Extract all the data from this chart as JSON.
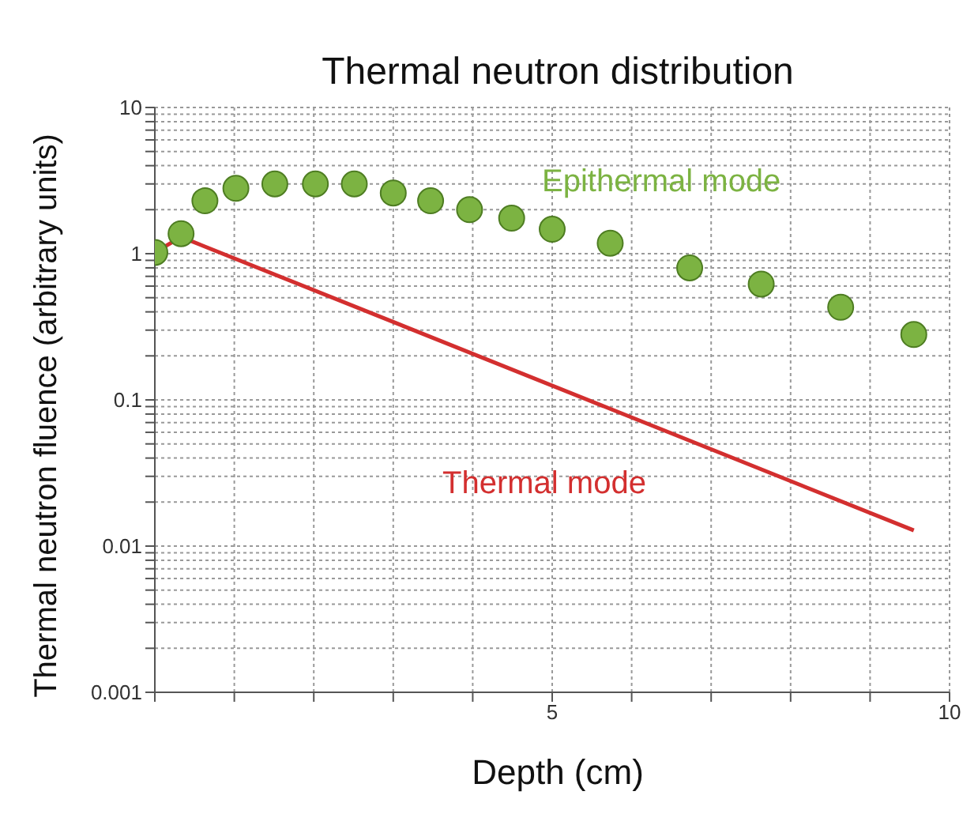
{
  "chart_data": {
    "type": "scatter",
    "title": "Thermal neutron distribution",
    "xlabel": "Depth (cm)",
    "ylabel": "Thermal neutron fluence (arbitrary units)",
    "log": "y",
    "grid": true,
    "xlim": [
      0,
      10
    ],
    "ylim": [
      0.001,
      10
    ],
    "xticks": [
      {
        "value": 0,
        "label": null
      },
      {
        "value": 1,
        "label": null
      },
      {
        "value": 2,
        "label": null
      },
      {
        "value": 3,
        "label": null
      },
      {
        "value": 4,
        "label": null
      },
      5,
      {
        "value": 6,
        "label": null
      },
      {
        "value": 7,
        "label": null
      },
      {
        "value": 8,
        "label": null
      },
      {
        "value": 9,
        "label": null
      },
      10
    ],
    "yticks": [
      0.001,
      {
        "value": 0.002,
        "label": null
      },
      {
        "value": 0.003,
        "label": null
      },
      {
        "value": 0.004,
        "label": null
      },
      {
        "value": 0.005,
        "label": null
      },
      {
        "value": 0.006,
        "label": null
      },
      {
        "value": 0.007,
        "label": null
      },
      {
        "value": 0.008,
        "label": null
      },
      {
        "value": 0.009,
        "label": null
      },
      0.01,
      {
        "value": 0.02,
        "label": null
      },
      {
        "value": 0.03,
        "label": null
      },
      {
        "value": 0.04,
        "label": null
      },
      {
        "value": 0.05,
        "label": null
      },
      {
        "value": 0.06,
        "label": null
      },
      {
        "value": 0.07,
        "label": null
      },
      {
        "value": 0.08,
        "label": null
      },
      {
        "value": 0.09,
        "label": null
      },
      0.1,
      {
        "value": 0.2,
        "label": null
      },
      {
        "value": 0.3,
        "label": null
      },
      {
        "value": 0.4,
        "label": null
      },
      {
        "value": 0.5,
        "label": null
      },
      {
        "value": 0.6,
        "label": null
      },
      {
        "value": 0.7,
        "label": null
      },
      {
        "value": 0.8,
        "label": null
      },
      {
        "value": 0.9,
        "label": null
      },
      1,
      {
        "value": 2,
        "label": null
      },
      {
        "value": 3,
        "label": null
      },
      {
        "value": 4,
        "label": null
      },
      {
        "value": 5,
        "label": null
      },
      {
        "value": 6,
        "label": null
      },
      {
        "value": 7,
        "label": null
      },
      {
        "value": 8,
        "label": null
      },
      {
        "value": 9,
        "label": null
      },
      10
    ],
    "series": [
      {
        "name": "Epithermal mode",
        "marker": "circle",
        "color": "#7cb342",
        "x": [
          0,
          0.33,
          0.63,
          1.02,
          1.51,
          2.02,
          2.51,
          3.0,
          3.47,
          3.96,
          4.49,
          5.0,
          5.73,
          6.73,
          7.63,
          8.63,
          9.55
        ],
        "values": [
          1.02,
          1.37,
          2.3,
          2.8,
          3.0,
          3.0,
          3.0,
          2.6,
          2.3,
          2.0,
          1.75,
          1.47,
          1.18,
          0.8,
          0.62,
          0.43,
          0.28
        ]
      },
      {
        "name": "Thermal mode",
        "type": "line",
        "line_style": "solid",
        "color": "#d32f2f",
        "x": [
          0,
          0.33,
          9.55
        ],
        "values": [
          1.02,
          1.3,
          0.0128
        ]
      }
    ]
  }
}
